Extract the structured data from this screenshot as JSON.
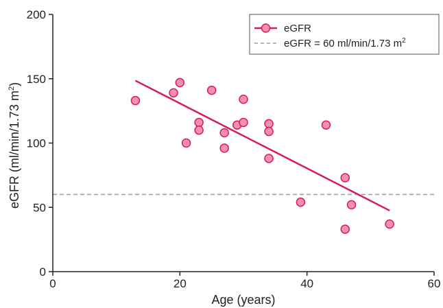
{
  "chart_data": {
    "type": "scatter",
    "xlabel": "Age (years)",
    "ylabel_main": "eGFR (ml/min/1.73 m",
    "ylabel_sup": "2",
    "ylabel_close": ")",
    "xlim": [
      0,
      60
    ],
    "ylim": [
      0,
      200
    ],
    "xticks": [
      0,
      20,
      40,
      60
    ],
    "xtick_labels": [
      "0",
      "20",
      "40",
      "60"
    ],
    "yticks": [
      0,
      50,
      100,
      150,
      200
    ],
    "ytick_labels": [
      "0",
      "50",
      "100",
      "150",
      "200"
    ],
    "grid": false,
    "legend_position": "top-right",
    "series": [
      {
        "name": "eGFR",
        "color": "#d81b60",
        "marker_fill": "#f48fb1",
        "points": [
          {
            "x": 13,
            "y": 133
          },
          {
            "x": 19,
            "y": 139
          },
          {
            "x": 20,
            "y": 147
          },
          {
            "x": 21,
            "y": 100
          },
          {
            "x": 23,
            "y": 116
          },
          {
            "x": 23,
            "y": 110
          },
          {
            "x": 25,
            "y": 141
          },
          {
            "x": 27,
            "y": 108
          },
          {
            "x": 27,
            "y": 96
          },
          {
            "x": 29,
            "y": 114
          },
          {
            "x": 30,
            "y": 134
          },
          {
            "x": 30,
            "y": 116
          },
          {
            "x": 34,
            "y": 115
          },
          {
            "x": 34,
            "y": 109
          },
          {
            "x": 34,
            "y": 88
          },
          {
            "x": 39,
            "y": 54
          },
          {
            "x": 43,
            "y": 114
          },
          {
            "x": 46,
            "y": 73
          },
          {
            "x": 46,
            "y": 33
          },
          {
            "x": 47,
            "y": 52
          },
          {
            "x": 53,
            "y": 37
          }
        ],
        "fit_line": {
          "x": [
            13,
            53
          ],
          "y": [
            148.5,
            47.5
          ]
        }
      }
    ],
    "reference_line": {
      "name": "eGFR = 60 ml/min/1.73 m",
      "name_sup": "2",
      "y": 60,
      "color": "#9e9e9e"
    }
  }
}
